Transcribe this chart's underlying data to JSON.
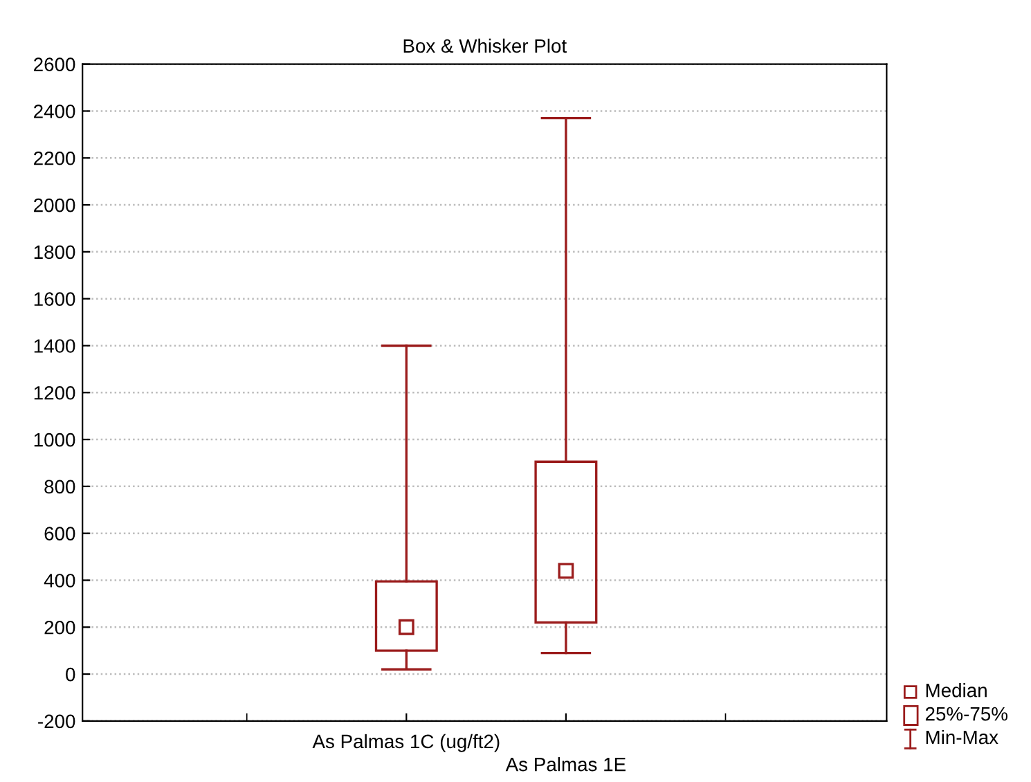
{
  "chart_data": {
    "type": "box",
    "title": "Box & Whisker Plot",
    "categories": [
      "As Palmas 1C (ug/ft2)",
      "As Palmas 1E"
    ],
    "series": [
      {
        "color": "#9b1c1c",
        "boxes": [
          {
            "low": 20,
            "q1": 100,
            "median": 200,
            "q3": 395,
            "high": 1400
          },
          {
            "low": 90,
            "q1": 220,
            "median": 440,
            "q3": 905,
            "high": 2370
          }
        ]
      }
    ],
    "annotations": [
      "Median",
      "25%-75%",
      "Min-Max"
    ],
    "ylim": [
      -200,
      2600
    ],
    "yticks": [
      -200,
      0,
      200,
      400,
      600,
      800,
      1000,
      1200,
      1400,
      1600,
      1800,
      2000,
      2200,
      2400,
      2600
    ],
    "grid": "y",
    "marker": "square"
  }
}
